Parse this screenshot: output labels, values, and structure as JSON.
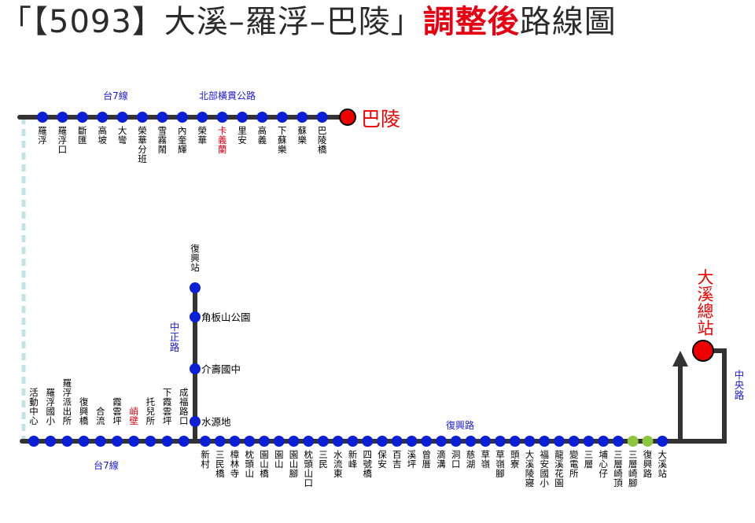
{
  "title": {
    "prefix": "「【5093】大溪–羅浮–巴陵」",
    "highlight": "調整後",
    "suffix": "路線圖"
  },
  "colors": {
    "route_line": "#333333",
    "stop": "#0a1fd6",
    "stop_outline": "#0a1fd6",
    "terminal": "#ee0000",
    "terminal_outline": "#000000",
    "road_label": "#1a1ad6",
    "stop_label": "#000000",
    "highlight_label": "#e60012",
    "dashed_connector": "#bfe3e6",
    "double_stop": "#8cc63f"
  },
  "terminals": {
    "north": "巴陵",
    "south": "大溪總站"
  },
  "roads": {
    "top_left": "台7線",
    "top_right": "北部橫貫公路",
    "bottom_left": "台7線",
    "bottom_right": "復興路",
    "branch": "中正路",
    "right": "中央路"
  },
  "top_stops": [
    {
      "name": "羅浮"
    },
    {
      "name": "羅浮口"
    },
    {
      "name": "斷匯"
    },
    {
      "name": "高坡"
    },
    {
      "name": "大彎"
    },
    {
      "name": "榮華分班"
    },
    {
      "name": "雪霧鬧"
    },
    {
      "name": "內奎輝"
    },
    {
      "name": "榮華"
    },
    {
      "name": "卡義蘭",
      "highlight": true
    },
    {
      "name": "里安"
    },
    {
      "name": "高義"
    },
    {
      "name": "下蘇樂"
    },
    {
      "name": "蘇樂"
    },
    {
      "name": "巴陵橋"
    }
  ],
  "bottom_left_stops": [
    {
      "name": "活動中心"
    },
    {
      "name": "羅浮國小"
    },
    {
      "name": "羅浮派出所"
    },
    {
      "name": "復興橋"
    },
    {
      "name": "合流"
    },
    {
      "name": "霞雲坪"
    },
    {
      "name": "峭壁",
      "highlight": true
    },
    {
      "name": "托兒所"
    },
    {
      "name": "下霞雲坪"
    },
    {
      "name": "成福路口"
    }
  ],
  "branch_stops": [
    {
      "name": "復興站"
    },
    {
      "name": "角板山公園"
    },
    {
      "name": "介壽國中"
    },
    {
      "name": "水源地"
    }
  ],
  "bottom_right_stops": [
    {
      "name": "新村"
    },
    {
      "name": "三民橋"
    },
    {
      "name": "樟林寺"
    },
    {
      "name": "枕頭山"
    },
    {
      "name": "園山橋"
    },
    {
      "name": "園山"
    },
    {
      "name": "園山腳"
    },
    {
      "name": "枕頭山口"
    },
    {
      "name": "三民"
    },
    {
      "name": "水流東"
    },
    {
      "name": "新峰"
    },
    {
      "name": "四號橋"
    },
    {
      "name": "保安"
    },
    {
      "name": "百吉"
    },
    {
      "name": "溪坪"
    },
    {
      "name": "曾厝"
    },
    {
      "name": "滴溝"
    },
    {
      "name": "洞口"
    },
    {
      "name": "慈湖"
    },
    {
      "name": "草嶺"
    },
    {
      "name": "草嶺腳"
    },
    {
      "name": "頭寮"
    },
    {
      "name": "大溪陵寢"
    },
    {
      "name": "福安國小"
    },
    {
      "name": "龍溪花園"
    },
    {
      "name": "變電所"
    },
    {
      "name": "三層"
    },
    {
      "name": "埔心仔"
    },
    {
      "name": "三層崎頂"
    },
    {
      "name": "三層崎腳",
      "double": true
    },
    {
      "name": "復興路",
      "double": true
    },
    {
      "name": "大溪站"
    }
  ]
}
